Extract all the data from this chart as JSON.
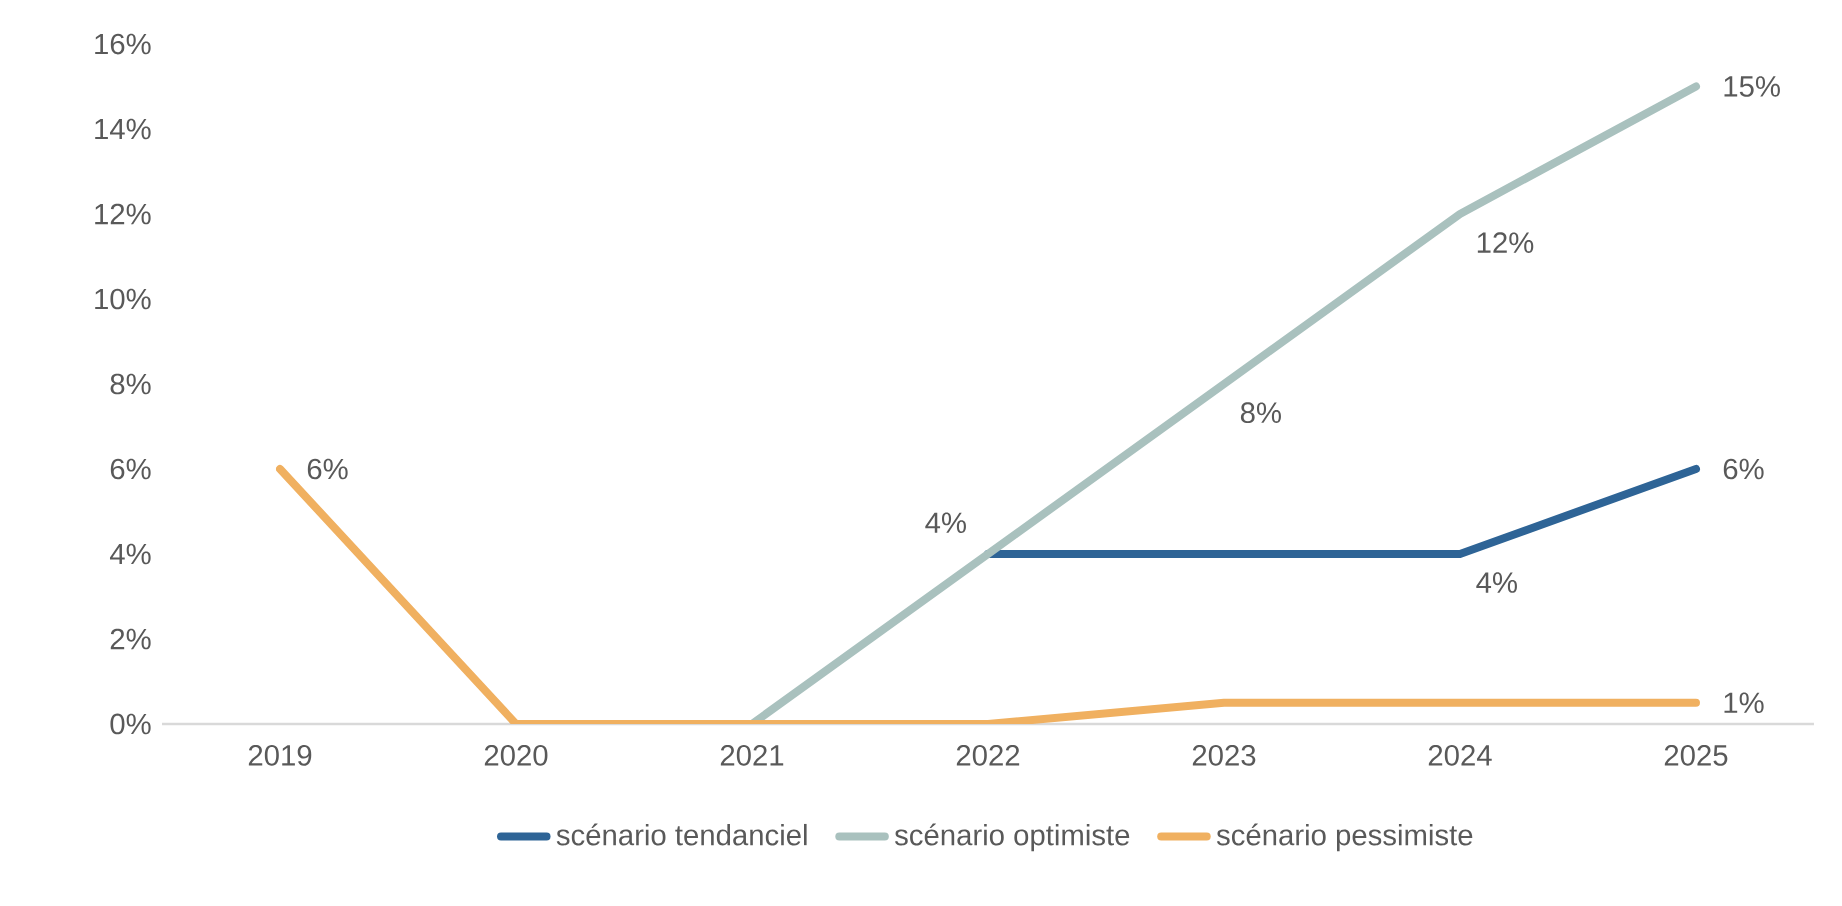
{
  "chart_data": {
    "type": "line",
    "categories": [
      "2019",
      "2020",
      "2021",
      "2022",
      "2023",
      "2024",
      "2025"
    ],
    "series": [
      {
        "name": "scénario tendanciel",
        "color": "#2e6496",
        "values": [
          null,
          null,
          null,
          4,
          4,
          4,
          6
        ],
        "value_labels": [
          null,
          null,
          null,
          null,
          null,
          "4%",
          "6%"
        ]
      },
      {
        "name": "scénario optimiste",
        "color": "#a9c1be",
        "values": [
          null,
          null,
          0,
          4,
          8,
          12,
          15
        ],
        "value_labels": [
          null,
          null,
          null,
          "4%",
          "8%",
          "12%",
          "15%"
        ]
      },
      {
        "name": "scénario pessimiste",
        "color": "#f0b060",
        "values": [
          6,
          0,
          0,
          0,
          0.5,
          0.5,
          0.5
        ],
        "value_labels": [
          "6%",
          null,
          null,
          null,
          null,
          null,
          "1%"
        ]
      }
    ],
    "ylim": [
      0,
      16
    ],
    "yticks": [
      {
        "value": 0,
        "label": "0%"
      },
      {
        "value": 2,
        "label": "2%"
      },
      {
        "value": 4,
        "label": "4%"
      },
      {
        "value": 6,
        "label": "6%"
      },
      {
        "value": 8,
        "label": "8%"
      },
      {
        "value": 10,
        "label": "10%"
      },
      {
        "value": 12,
        "label": "12%"
      },
      {
        "value": 14,
        "label": "14%"
      },
      {
        "value": 16,
        "label": "16%"
      }
    ],
    "grid": false,
    "legend": "bottom",
    "marker": "none",
    "line_style": "solid"
  }
}
